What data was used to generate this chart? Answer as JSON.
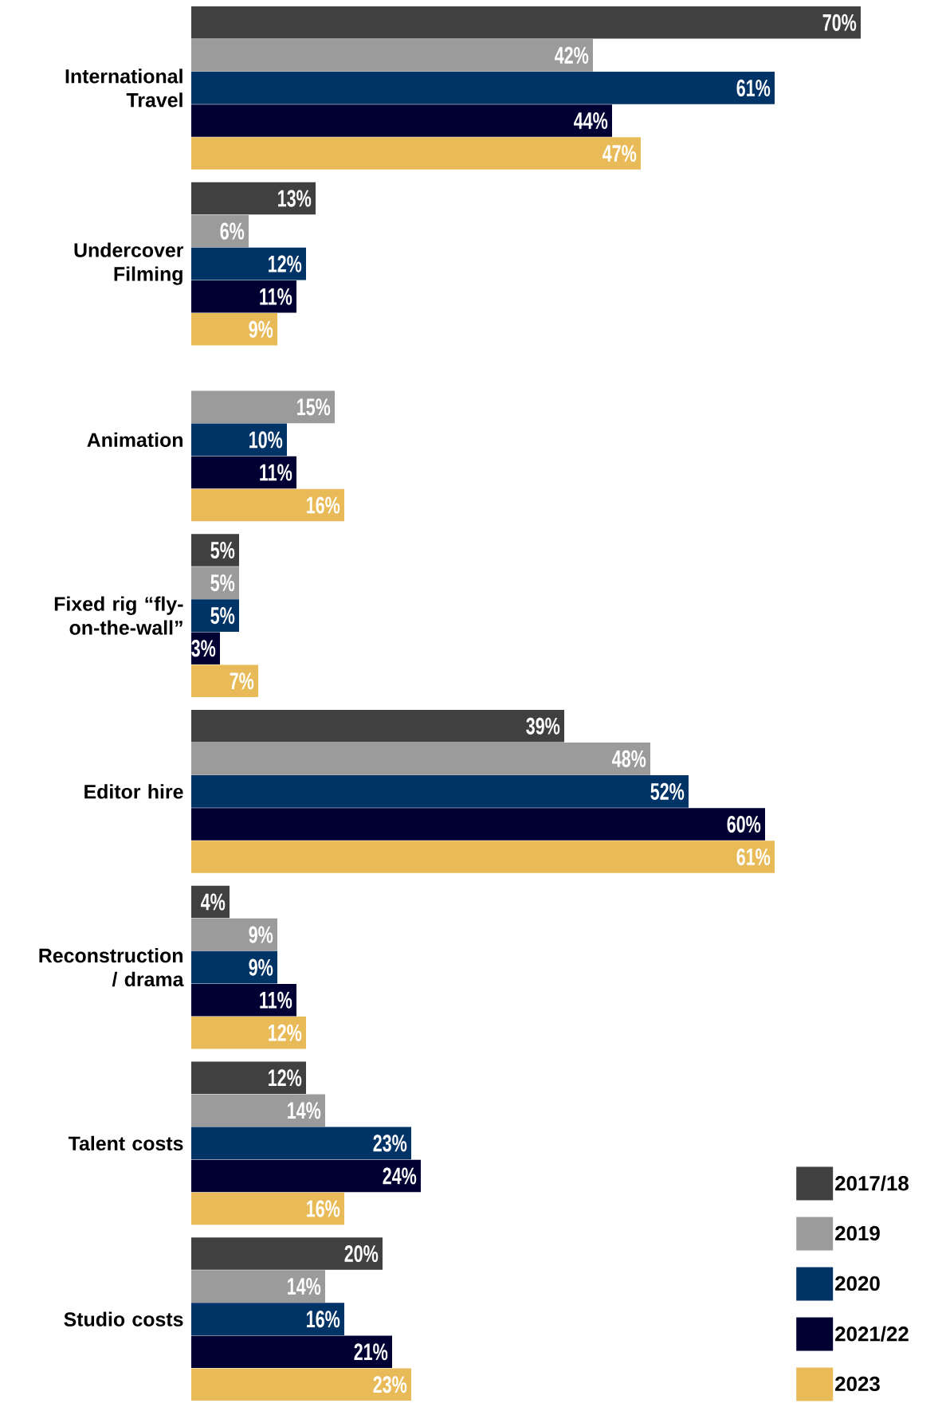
{
  "chart_data": {
    "type": "bar",
    "orientation": "horizontal",
    "legend": "bottom right",
    "categories": [
      "International Travel",
      "Undercover Filming",
      "Animation",
      "Fixed rig “fly-on-the-wall”",
      "Editor hire",
      "Reconstruction / drama",
      "Talent costs",
      "Studio costs"
    ],
    "series": [
      {
        "name": "2017/18",
        "color": "#404040",
        "values": [
          70,
          13,
          null,
          5,
          39,
          4,
          12,
          20
        ],
        "value_labels": [
          "70%",
          "13%",
          null,
          "5%",
          "39%",
          "4%",
          "12%",
          "20%"
        ]
      },
      {
        "name": "2019",
        "color": "#9b9b9b",
        "values": [
          42,
          6,
          15,
          5,
          48,
          9,
          14,
          14
        ],
        "value_labels": [
          "42%",
          "6%",
          "15%",
          "5%",
          "48%",
          "9%",
          "14%",
          "14%"
        ]
      },
      {
        "name": "2020",
        "color": "#003366",
        "values": [
          61,
          12,
          10,
          5,
          52,
          9,
          23,
          16
        ],
        "value_labels": [
          "61%",
          "12%",
          "10%",
          "5%",
          "52%",
          "9%",
          "23%",
          "16%"
        ]
      },
      {
        "name": "2021/22",
        "color": "#000033",
        "values": [
          44,
          11,
          11,
          3,
          60,
          11,
          24,
          21
        ],
        "value_labels": [
          "44%",
          "11%",
          "11%",
          "3%",
          "60%",
          "11%",
          "24%",
          "21%"
        ]
      },
      {
        "name": "2023",
        "color": "#e8bb58",
        "values": [
          47,
          9,
          16,
          7,
          61,
          12,
          16,
          23
        ],
        "value_labels": [
          "47%",
          "9%",
          "16%",
          "7%",
          "61%",
          "12%",
          "16%",
          "23%"
        ]
      }
    ]
  }
}
